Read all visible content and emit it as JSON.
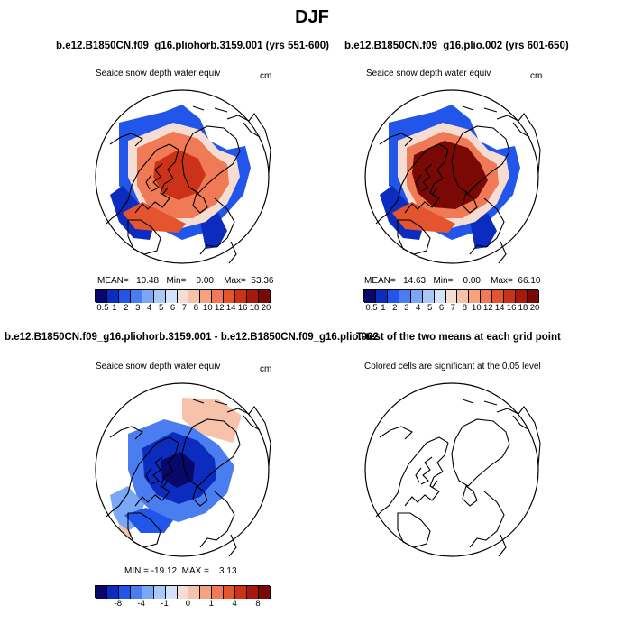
{
  "title": "DJF",
  "panels": [
    {
      "title": "b.e12.B1850CN.f09_g16.pliohorb.3159.001 (yrs 551-600)",
      "variable": "Seaice snow depth water equiv",
      "units": "cm",
      "stats": {
        "mean_label": "MEAN=",
        "mean": "10.48",
        "min_label": "Min=",
        "min": "0.00",
        "max_label": "Max=",
        "max": "53.36"
      },
      "colorbar_ticks": [
        "0.5",
        "1",
        "2",
        "3",
        "4",
        "5",
        "6",
        "7",
        "8",
        "10",
        "12",
        "14",
        "16",
        "18",
        "20"
      ]
    },
    {
      "title": "b.e12.B1850CN.f09_g16.plio.002 (yrs 601-650)",
      "variable": "Seaice snow depth water equiv",
      "units": "cm",
      "stats": {
        "mean_label": "MEAN=",
        "mean": "14.63",
        "min_label": "Min=",
        "min": "0.00",
        "max_label": "Max=",
        "max": "66.10"
      },
      "colorbar_ticks": [
        "0.5",
        "1",
        "2",
        "3",
        "4",
        "5",
        "6",
        "7",
        "8",
        "10",
        "12",
        "14",
        "16",
        "18",
        "20"
      ]
    },
    {
      "title": "b.e12.B1850CN.f09_g16.pliohorb.3159.001 - b.e12.B1850CN.f09_g16.plio.002",
      "variable": "Seaice snow depth water equiv",
      "units": "cm",
      "stats_text": "MIN = -19.12  MAX =    3.13",
      "colorbar_ticks": [
        "-8",
        "-4",
        "-1",
        "0",
        "1",
        "4",
        "8"
      ]
    },
    {
      "title": "T-test of the two means at each grid point",
      "variable": "Colored cells are significant at the 0.05 level"
    }
  ],
  "colors": {
    "seq_scale": [
      "#08086b",
      "#0c2cc0",
      "#2255ea",
      "#4a7ef0",
      "#7aa8f4",
      "#a8c8f8",
      "#d2e2fb",
      "#f5ddd3",
      "#f7c2aa",
      "#f6a27f",
      "#f07a55",
      "#e4542f",
      "#cc3218",
      "#a8180c",
      "#7a0804"
    ],
    "div_scale": [
      "#08086b",
      "#0c2cc0",
      "#2255ea",
      "#4a7ef0",
      "#7aa8f4",
      "#a8c8f8",
      "#d2e2fb",
      "#f5ddd3",
      "#f7c2aa",
      "#f6a27f",
      "#f07a55",
      "#e4542f",
      "#cc3218",
      "#a8180c",
      "#7a0804"
    ]
  }
}
